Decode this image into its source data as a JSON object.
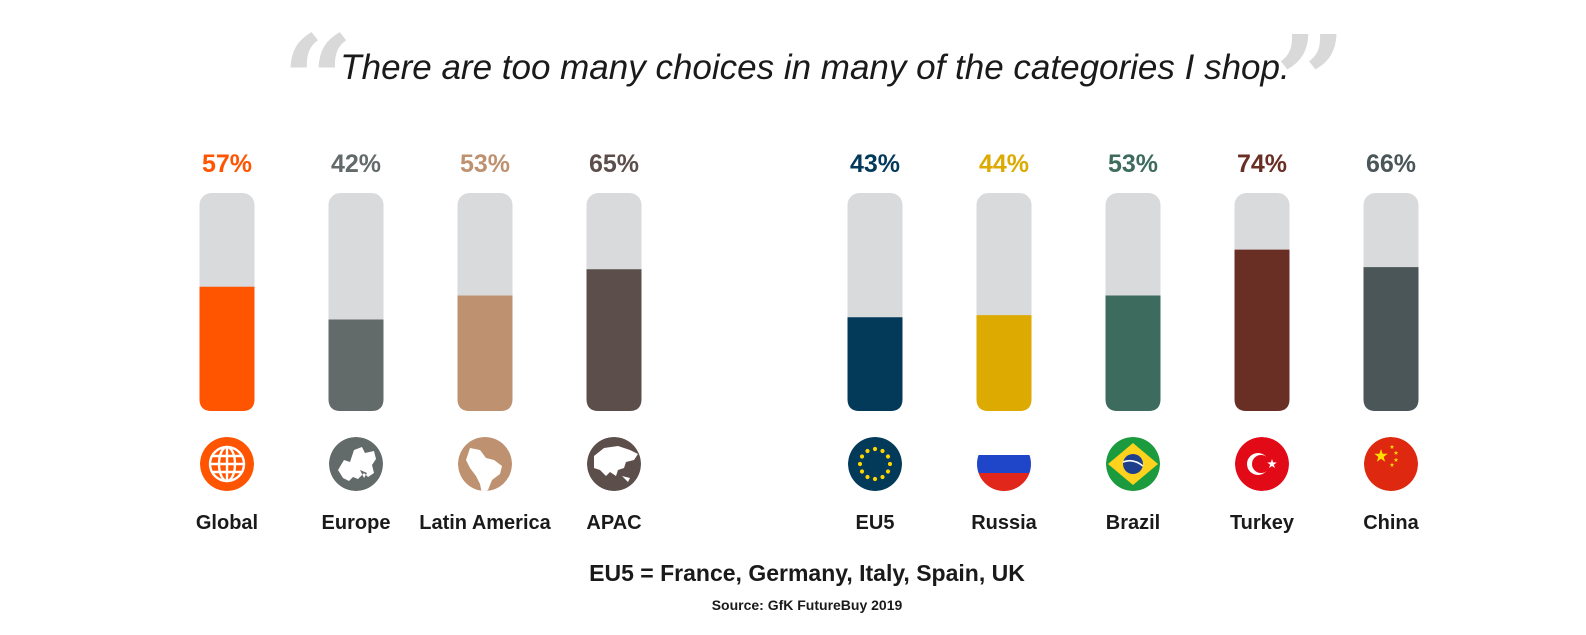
{
  "quote_open": "“",
  "quote_close": "”",
  "headline": "There are too many choices in many of the categories I shop.",
  "footnote": "EU5 = France, Germany, Italy, Spain, UK",
  "source": "Source: GfK FutureBuy 2019",
  "chart_data": {
    "type": "bar",
    "title": "There are too many choices in many of the categories I shop.",
    "categories": [
      "Global",
      "Europe",
      "Latin America",
      "APAC",
      "EU5",
      "Russia",
      "Brazil",
      "Turkey",
      "China"
    ],
    "values": [
      57,
      42,
      53,
      65,
      43,
      44,
      53,
      74,
      66
    ],
    "value_labels": [
      "57%",
      "42%",
      "53%",
      "65%",
      "43%",
      "44%",
      "53%",
      "74%",
      "66%"
    ],
    "ylim": [
      0,
      100
    ],
    "colors": [
      "#ff5500",
      "#636a6a",
      "#be9270",
      "#5c4e4b",
      "#033a5a",
      "#dcaa00",
      "#3d6b5e",
      "#692f24",
      "#4a5658"
    ],
    "track_color": "#d9dadc",
    "icons": [
      "globe-icon",
      "europe-map-icon",
      "latin-america-map-icon",
      "asia-map-icon",
      "eu-flag-icon",
      "russia-flag-icon",
      "brazil-flag-icon",
      "turkey-flag-icon",
      "china-flag-icon"
    ]
  }
}
